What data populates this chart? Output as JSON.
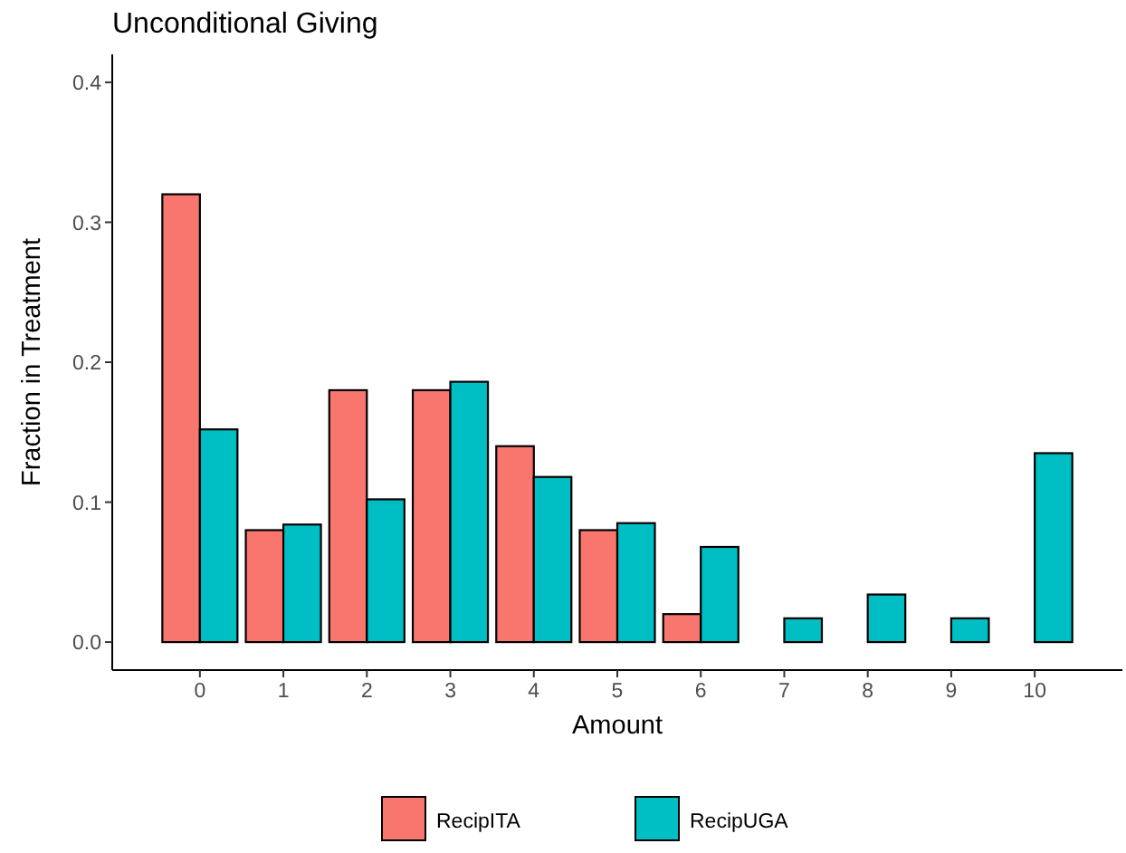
{
  "chart_data": {
    "type": "bar",
    "title": "Unconditional Giving",
    "xlabel": "Amount",
    "ylabel": "Fraction in Treatment",
    "categories": [
      "0",
      "1",
      "2",
      "3",
      "4",
      "5",
      "6",
      "7",
      "8",
      "9",
      "10"
    ],
    "series": [
      {
        "name": "RecipITA",
        "color": "#f8766d",
        "values": [
          0.32,
          0.08,
          0.18,
          0.18,
          0.14,
          0.08,
          0.02,
          0,
          0,
          0,
          0
        ]
      },
      {
        "name": "RecipUGA",
        "color": "#00bfc4",
        "values": [
          0.152,
          0.084,
          0.102,
          0.186,
          0.118,
          0.085,
          0.068,
          0.017,
          0.034,
          0.017,
          0.135
        ]
      }
    ],
    "ylim": [
      -0.02,
      0.42
    ],
    "yticks": [
      {
        "value": 0,
        "label": "0.0"
      },
      0.1,
      0.2,
      0.3,
      0.4
    ],
    "grid": false,
    "legend": "bottom"
  }
}
